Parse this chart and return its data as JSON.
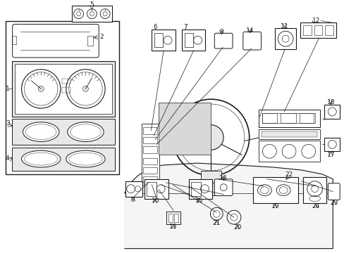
{
  "bg_color": "#ffffff",
  "line_color": "#1a1a1a",
  "fig_width": 4.89,
  "fig_height": 3.6,
  "dpi": 100,
  "gray_fill": "#e8e8e8",
  "light_gray": "#d0d0d0"
}
